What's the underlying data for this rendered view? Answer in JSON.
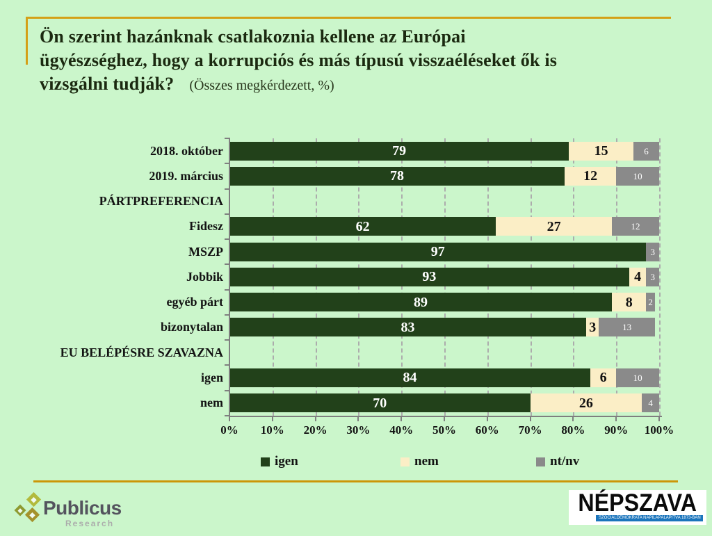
{
  "slide": {
    "background_color": "#CBF6CB",
    "accent_line_color": "#D4A017"
  },
  "title": {
    "line1": "Ön szerint hazánknak csatlakoznia kellene az Európai",
    "line2": "ügyészséghez, hogy a korrupciós és más típusú visszaéléseket ők is",
    "line3": "vizsgálni tudják?",
    "subtitle": "(Összes megkérdezett, %)"
  },
  "chart_data": {
    "type": "bar",
    "orientation": "horizontal",
    "stacked": true,
    "unit": "%",
    "title": "Ön szerint hazánknak csatlakoznia kellene az Európai ügyészséghez, hogy a korrupciós és más típusú visszaéléseket ők is vizsgálni tudják?",
    "note": "(Összes megkérdezett, %)",
    "xlim": [
      0,
      100
    ],
    "x_ticks": [
      "0%",
      "10%",
      "20%",
      "30%",
      "40%",
      "50%",
      "60%",
      "70%",
      "80%",
      "90%",
      "100%"
    ],
    "grid": "vertical-dashed",
    "legend_position": "bottom",
    "series": [
      {
        "name": "igen",
        "color": "#22411A",
        "label_color": "#FFFFFF",
        "label_size": 20,
        "label_weight": "bold"
      },
      {
        "name": "nem",
        "color": "#FBEEC6",
        "label_color": "#111111",
        "label_size": 20,
        "label_weight": "bold"
      },
      {
        "name": "nt/nv",
        "color": "#8A8A8A",
        "label_color": "#FFFFFF",
        "label_size": 13,
        "label_weight": "normal"
      }
    ],
    "rows": [
      {
        "label": "2018. október",
        "values": [
          79,
          15,
          6
        ]
      },
      {
        "label": "2019. március",
        "values": [
          78,
          12,
          10
        ]
      },
      {
        "label": "PÁRTPREFERENCIA",
        "header": true
      },
      {
        "label": "Fidesz",
        "values": [
          62,
          27,
          12
        ]
      },
      {
        "label": "MSZP",
        "values": [
          97,
          0,
          3
        ]
      },
      {
        "label": "Jobbik",
        "values": [
          93,
          4,
          3
        ]
      },
      {
        "label": "egyéb párt",
        "values": [
          89,
          8,
          2
        ]
      },
      {
        "label": "bizonytalan",
        "values": [
          83,
          3,
          13
        ]
      },
      {
        "label": "EU BELÉPÉSRE SZAVAZNA",
        "header": true
      },
      {
        "label": "igen",
        "values": [
          84,
          6,
          10
        ]
      },
      {
        "label": "nem",
        "values": [
          70,
          26,
          4
        ]
      }
    ]
  },
  "footer": {
    "publicus": {
      "brand": "Publicus",
      "sub": "Research"
    },
    "nepszava": {
      "brand": "NÉPSZAVA",
      "tagline_left": "SZOCIÁLDEMOKRATA NAPILAP",
      "tagline_right": "ALAPÍTVA 1873-BAN",
      "bar_color": "#1B75BC"
    }
  }
}
